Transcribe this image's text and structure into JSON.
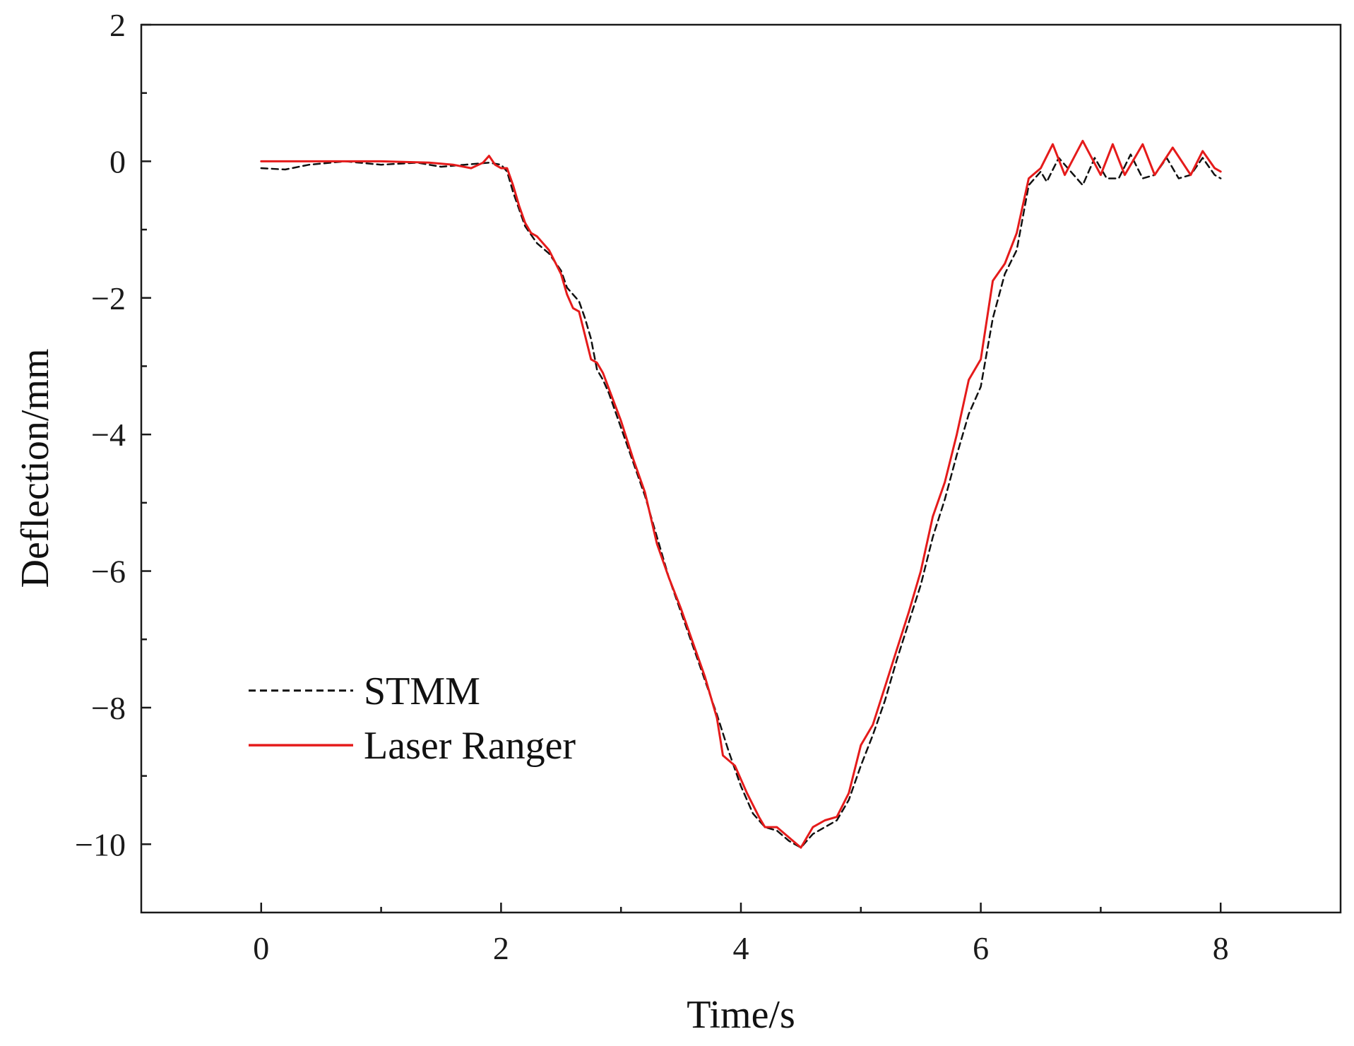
{
  "chart_data": {
    "type": "line",
    "title": "",
    "xlabel": "Time/s",
    "ylabel": "Deflection/mm",
    "xlim": [
      -1,
      9
    ],
    "ylim": [
      -11,
      2
    ],
    "xticks": [
      0,
      2,
      4,
      6,
      8
    ],
    "xtick_labels": [
      "0",
      "2",
      "4",
      "6",
      "8"
    ],
    "yticks": [
      2,
      0,
      -2,
      -4,
      -6,
      -8,
      -10
    ],
    "ytick_labels": [
      "2",
      "0",
      "−2",
      "−4",
      "−6",
      "−8",
      "−10"
    ],
    "grid": false,
    "legend_position": "bottom-left",
    "series": [
      {
        "name": "STMM",
        "color": "#111111",
        "style": "dashed",
        "points": [
          [
            0.0,
            -0.1
          ],
          [
            0.2,
            -0.12
          ],
          [
            0.4,
            -0.05
          ],
          [
            0.7,
            0.0
          ],
          [
            1.0,
            -0.05
          ],
          [
            1.3,
            -0.02
          ],
          [
            1.5,
            -0.08
          ],
          [
            1.7,
            -0.05
          ],
          [
            1.9,
            -0.02
          ],
          [
            2.0,
            -0.05
          ],
          [
            2.05,
            -0.15
          ],
          [
            2.1,
            -0.45
          ],
          [
            2.15,
            -0.7
          ],
          [
            2.2,
            -0.95
          ],
          [
            2.3,
            -1.2
          ],
          [
            2.4,
            -1.35
          ],
          [
            2.5,
            -1.6
          ],
          [
            2.55,
            -1.85
          ],
          [
            2.6,
            -1.95
          ],
          [
            2.65,
            -2.05
          ],
          [
            2.7,
            -2.3
          ],
          [
            2.75,
            -2.6
          ],
          [
            2.8,
            -3.05
          ],
          [
            2.85,
            -3.2
          ],
          [
            2.9,
            -3.4
          ],
          [
            3.0,
            -3.9
          ],
          [
            3.1,
            -4.4
          ],
          [
            3.2,
            -4.9
          ],
          [
            3.3,
            -5.5
          ],
          [
            3.4,
            -6.1
          ],
          [
            3.5,
            -6.6
          ],
          [
            3.6,
            -7.1
          ],
          [
            3.7,
            -7.6
          ],
          [
            3.8,
            -8.1
          ],
          [
            3.9,
            -8.65
          ],
          [
            4.0,
            -9.15
          ],
          [
            4.1,
            -9.55
          ],
          [
            4.2,
            -9.75
          ],
          [
            4.3,
            -9.8
          ],
          [
            4.4,
            -9.95
          ],
          [
            4.5,
            -10.05
          ],
          [
            4.6,
            -9.85
          ],
          [
            4.7,
            -9.75
          ],
          [
            4.8,
            -9.65
          ],
          [
            4.9,
            -9.35
          ],
          [
            5.0,
            -8.85
          ],
          [
            5.1,
            -8.4
          ],
          [
            5.2,
            -7.9
          ],
          [
            5.3,
            -7.3
          ],
          [
            5.4,
            -6.75
          ],
          [
            5.5,
            -6.2
          ],
          [
            5.6,
            -5.5
          ],
          [
            5.7,
            -4.95
          ],
          [
            5.8,
            -4.3
          ],
          [
            5.9,
            -3.7
          ],
          [
            6.0,
            -3.3
          ],
          [
            6.1,
            -2.3
          ],
          [
            6.2,
            -1.65
          ],
          [
            6.3,
            -1.3
          ],
          [
            6.4,
            -0.35
          ],
          [
            6.5,
            -0.15
          ],
          [
            6.55,
            -0.3
          ],
          [
            6.65,
            0.05
          ],
          [
            6.75,
            -0.15
          ],
          [
            6.85,
            -0.35
          ],
          [
            6.95,
            0.05
          ],
          [
            7.05,
            -0.25
          ],
          [
            7.15,
            -0.25
          ],
          [
            7.25,
            0.1
          ],
          [
            7.35,
            -0.25
          ],
          [
            7.45,
            -0.2
          ],
          [
            7.55,
            0.05
          ],
          [
            7.65,
            -0.25
          ],
          [
            7.75,
            -0.2
          ],
          [
            7.85,
            0.05
          ],
          [
            7.95,
            -0.2
          ],
          [
            8.0,
            -0.25
          ]
        ]
      },
      {
        "name": "Laser Ranger",
        "color": "#e51b1b",
        "style": "solid",
        "points": [
          [
            0.0,
            0.0
          ],
          [
            0.5,
            0.0
          ],
          [
            1.0,
            0.0
          ],
          [
            1.4,
            -0.02
          ],
          [
            1.6,
            -0.05
          ],
          [
            1.75,
            -0.1
          ],
          [
            1.85,
            -0.02
          ],
          [
            1.9,
            0.08
          ],
          [
            1.95,
            -0.05
          ],
          [
            2.0,
            -0.1
          ],
          [
            2.05,
            -0.1
          ],
          [
            2.1,
            -0.35
          ],
          [
            2.15,
            -0.65
          ],
          [
            2.2,
            -0.9
          ],
          [
            2.25,
            -1.05
          ],
          [
            2.3,
            -1.1
          ],
          [
            2.4,
            -1.3
          ],
          [
            2.5,
            -1.65
          ],
          [
            2.55,
            -1.95
          ],
          [
            2.6,
            -2.15
          ],
          [
            2.65,
            -2.2
          ],
          [
            2.7,
            -2.55
          ],
          [
            2.75,
            -2.9
          ],
          [
            2.8,
            -2.95
          ],
          [
            2.85,
            -3.1
          ],
          [
            3.0,
            -3.8
          ],
          [
            3.1,
            -4.35
          ],
          [
            3.2,
            -4.85
          ],
          [
            3.3,
            -5.6
          ],
          [
            3.4,
            -6.1
          ],
          [
            3.5,
            -6.55
          ],
          [
            3.6,
            -7.05
          ],
          [
            3.7,
            -7.55
          ],
          [
            3.8,
            -8.15
          ],
          [
            3.85,
            -8.7
          ],
          [
            3.95,
            -8.85
          ],
          [
            4.05,
            -9.25
          ],
          [
            4.15,
            -9.6
          ],
          [
            4.2,
            -9.75
          ],
          [
            4.3,
            -9.75
          ],
          [
            4.4,
            -9.9
          ],
          [
            4.5,
            -10.05
          ],
          [
            4.6,
            -9.75
          ],
          [
            4.7,
            -9.65
          ],
          [
            4.8,
            -9.6
          ],
          [
            4.9,
            -9.25
          ],
          [
            5.0,
            -8.55
          ],
          [
            5.1,
            -8.25
          ],
          [
            5.2,
            -7.7
          ],
          [
            5.3,
            -7.15
          ],
          [
            5.4,
            -6.6
          ],
          [
            5.5,
            -6.0
          ],
          [
            5.6,
            -5.2
          ],
          [
            5.7,
            -4.7
          ],
          [
            5.8,
            -4.0
          ],
          [
            5.9,
            -3.2
          ],
          [
            6.0,
            -2.9
          ],
          [
            6.1,
            -1.75
          ],
          [
            6.2,
            -1.5
          ],
          [
            6.3,
            -1.05
          ],
          [
            6.4,
            -0.25
          ],
          [
            6.5,
            -0.1
          ],
          [
            6.6,
            0.25
          ],
          [
            6.7,
            -0.2
          ],
          [
            6.85,
            0.3
          ],
          [
            7.0,
            -0.2
          ],
          [
            7.1,
            0.25
          ],
          [
            7.2,
            -0.2
          ],
          [
            7.35,
            0.25
          ],
          [
            7.45,
            -0.2
          ],
          [
            7.6,
            0.2
          ],
          [
            7.75,
            -0.2
          ],
          [
            7.85,
            0.15
          ],
          [
            7.95,
            -0.1
          ],
          [
            8.0,
            -0.15
          ]
        ]
      }
    ]
  }
}
